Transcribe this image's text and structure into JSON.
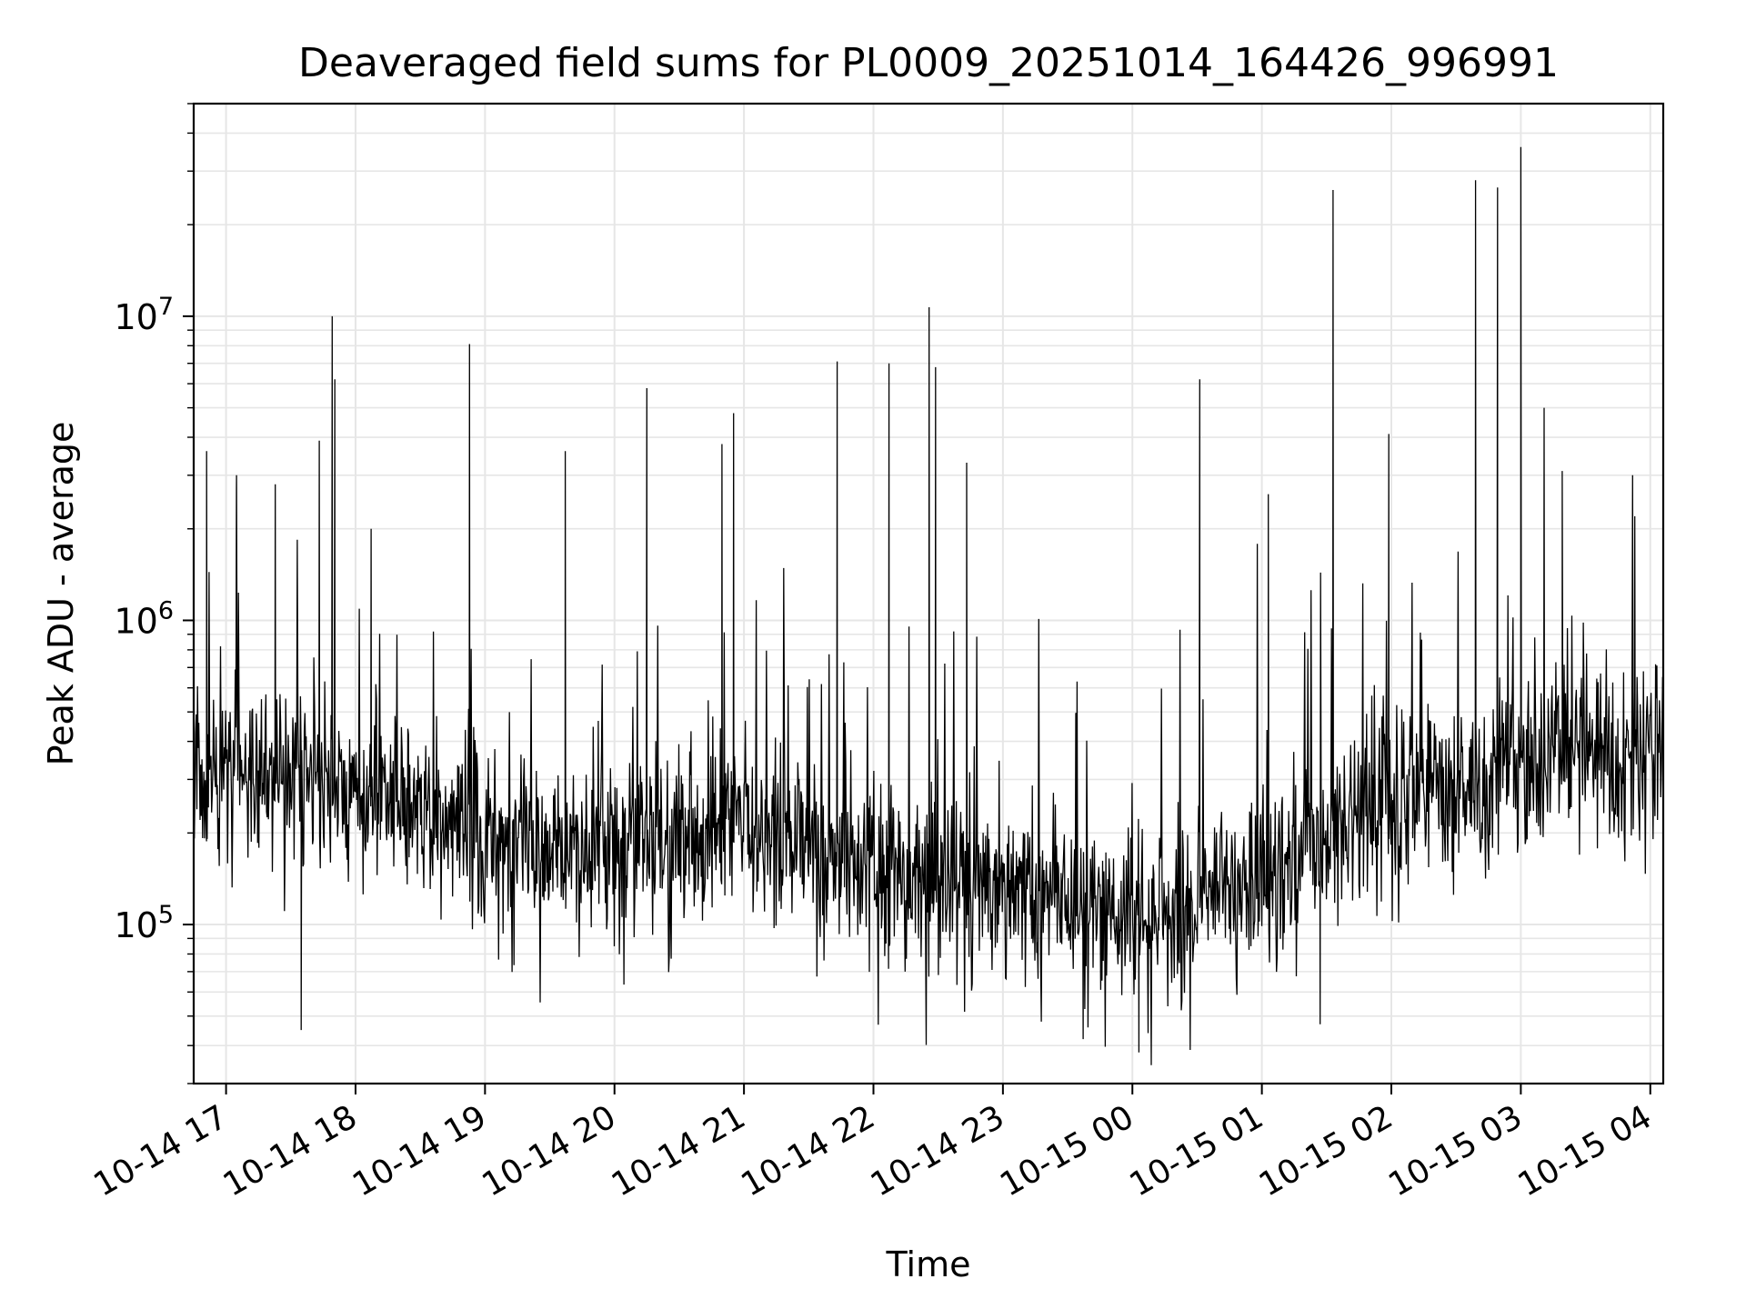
{
  "chart_data": {
    "type": "line",
    "title": "Deaveraged field sums for PL0009_20251014_164426_996991",
    "xlabel": "Time",
    "ylabel": "Peak ADU - average",
    "yscale": "log",
    "ylim": [
      30000,
      50000000
    ],
    "x_unit": "hours since 2025-10-14 00:00",
    "xlim": [
      16.75,
      28.1
    ],
    "grid": true,
    "line_color": "#000000",
    "grid_color": "#e6e6e6",
    "x_ticks": [
      {
        "value": 17,
        "label": "10-14 17"
      },
      {
        "value": 18,
        "label": "10-14 18"
      },
      {
        "value": 19,
        "label": "10-14 19"
      },
      {
        "value": 20,
        "label": "10-14 20"
      },
      {
        "value": 21,
        "label": "10-14 21"
      },
      {
        "value": 22,
        "label": "10-14 22"
      },
      {
        "value": 23,
        "label": "10-14 23"
      },
      {
        "value": 24,
        "label": "10-15 00"
      },
      {
        "value": 25,
        "label": "10-15 01"
      },
      {
        "value": 26,
        "label": "10-15 02"
      },
      {
        "value": 27,
        "label": "10-15 03"
      },
      {
        "value": 28,
        "label": "10-15 04"
      }
    ],
    "y_ticks": [
      {
        "value": 100000,
        "base": "10",
        "exp": "5"
      },
      {
        "value": 1000000,
        "base": "10",
        "exp": "6"
      },
      {
        "value": 10000000,
        "base": "10",
        "exp": "7"
      }
    ],
    "series": [
      {
        "name": "deaveraged field sum",
        "n_samples": 2300,
        "baseline": [
          {
            "x": 16.75,
            "y": 300000
          },
          {
            "x": 17.5,
            "y": 330000
          },
          {
            "x": 18.0,
            "y": 280000
          },
          {
            "x": 19.0,
            "y": 190000
          },
          {
            "x": 20.0,
            "y": 180000
          },
          {
            "x": 21.0,
            "y": 200000
          },
          {
            "x": 22.0,
            "y": 150000
          },
          {
            "x": 23.0,
            "y": 140000
          },
          {
            "x": 24.0,
            "y": 100000
          },
          {
            "x": 24.5,
            "y": 110000
          },
          {
            "x": 25.0,
            "y": 150000
          },
          {
            "x": 26.0,
            "y": 250000
          },
          {
            "x": 27.0,
            "y": 340000
          },
          {
            "x": 28.1,
            "y": 400000
          }
        ],
        "spikes": [
          {
            "x": 16.85,
            "y": 3600000
          },
          {
            "x": 17.08,
            "y": 2700000
          },
          {
            "x": 17.38,
            "y": 2800000
          },
          {
            "x": 17.72,
            "y": 3900000
          },
          {
            "x": 17.82,
            "y": 10000000
          },
          {
            "x": 17.84,
            "y": 6200000
          },
          {
            "x": 18.12,
            "y": 2000000
          },
          {
            "x": 18.88,
            "y": 8100000
          },
          {
            "x": 19.62,
            "y": 3600000
          },
          {
            "x": 20.25,
            "y": 5800000
          },
          {
            "x": 20.83,
            "y": 3800000
          },
          {
            "x": 20.92,
            "y": 4800000
          },
          {
            "x": 21.72,
            "y": 7100000
          },
          {
            "x": 22.12,
            "y": 7000000
          },
          {
            "x": 22.43,
            "y": 10700000
          },
          {
            "x": 22.48,
            "y": 6800000
          },
          {
            "x": 22.72,
            "y": 3300000
          },
          {
            "x": 24.52,
            "y": 6200000
          },
          {
            "x": 25.05,
            "y": 2600000
          },
          {
            "x": 25.55,
            "y": 26000000
          },
          {
            "x": 25.98,
            "y": 4100000
          },
          {
            "x": 26.65,
            "y": 28000000
          },
          {
            "x": 26.82,
            "y": 26500000
          },
          {
            "x": 27.0,
            "y": 36000000
          },
          {
            "x": 27.18,
            "y": 5000000
          },
          {
            "x": 27.32,
            "y": 3100000
          },
          {
            "x": 27.88,
            "y": 2200000
          }
        ],
        "dips": [
          {
            "x": 17.58,
            "y": 45000
          },
          {
            "x": 23.62,
            "y": 42000
          },
          {
            "x": 24.05,
            "y": 38000
          },
          {
            "x": 25.45,
            "y": 47000
          }
        ]
      }
    ]
  }
}
